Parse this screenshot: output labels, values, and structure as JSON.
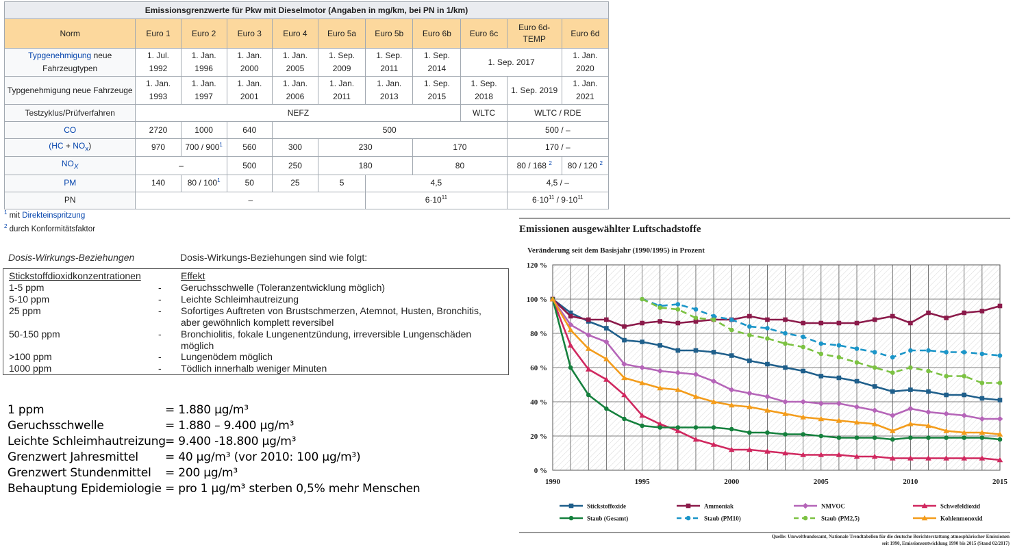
{
  "table": {
    "title": "Emissionsgrenzwerte für Pkw mit Dieselmotor (Angaben in mg/km, bei PN in 1/km)",
    "headers": [
      "Norm",
      "Euro 1",
      "Euro 2",
      "Euro 3",
      "Euro 4",
      "Euro 5a",
      "Euro 5b",
      "Euro 6b",
      "Euro 6c",
      "Euro 6d-TEMP",
      "Euro 6d"
    ],
    "typ_neue_label_link": "Typgenehmigung",
    "typ_neue_label_rest": " neue Fahrzeugtypen",
    "typ_neue_values": [
      "1. Jul. 1992",
      "1. Jan. 1996",
      "1. Jan. 2000",
      "1. Jan. 2005",
      "1. Sep. 2009",
      "1. Sep. 2011",
      "1. Sep. 2014",
      "1. Sep. 2017",
      "1. Jan. 2020"
    ],
    "typ_fz_label": "Typgenehmigung neue Fahrzeuge",
    "typ_fz_values": [
      "1. Jan. 1993",
      "1. Jan. 1997",
      "1. Jan. 2001",
      "1. Jan. 2006",
      "1. Jan. 2011",
      "1. Jan. 2013",
      "1. Sep. 2015",
      "1. Sep. 2018",
      "1. Sep. 2019",
      "1. Jan. 2021"
    ],
    "test_label": "Testzyklus/Prüfverfahren",
    "test_values": [
      "NEFZ",
      "WLTC",
      "WLTC / RDE"
    ],
    "co_label": "CO",
    "co_values": [
      "2720",
      "1000",
      "640",
      "500",
      "500 / –"
    ],
    "hc_label_pre": "(",
    "hc_label_hc": "HC",
    "hc_label_plus": " + ",
    "hc_label_nox": "NO",
    "hc_label_sub": "x",
    "hc_label_post": ")",
    "hc_values": [
      "970",
      "700 / 900",
      "560",
      "300",
      "230",
      "170",
      "170 / –"
    ],
    "hc_sup": "1",
    "nox_label": "NO",
    "nox_sub": "X",
    "nox_values": [
      "–",
      "500",
      "250",
      "180",
      "80",
      "80 / 168 ",
      "80 / 120 "
    ],
    "nox_sup": "2",
    "pm_label": "PM",
    "pm_values": [
      "140",
      "80 / 100",
      "50",
      "25",
      "5",
      "4,5",
      "4,5 / –"
    ],
    "pm_sup": "1",
    "pn_label": "PN",
    "pn_values": [
      "–",
      "6·10",
      "6·10",
      "/ 9·10"
    ],
    "pn_exp": "11"
  },
  "footnotes": {
    "f1_num": "1",
    "f1_text": " mit ",
    "f1_link": "Direkteinspritzung",
    "f2_num": "2",
    "f2_text": " durch Konformitätsfaktor"
  },
  "dose": {
    "heading_italic": "Dosis-Wirkungs-Beziehungen",
    "heading_text": "Dosis-Wirkungs-Beziehungen sind wie folgt:",
    "col1_header": "Stickstoffdioxidkonzentrationen",
    "col3_header": "Effekt",
    "rows": [
      {
        "conc": "1-5 ppm",
        "dash": "-",
        "effect": "Geruchsschwelle (Toleranzentwicklung möglich)"
      },
      {
        "conc": "5-10 ppm",
        "dash": "-",
        "effect": "Leichte Schleimhautreizung"
      },
      {
        "conc": "25 ppm",
        "dash": "-",
        "effect": "Sofortiges Auftreten von Brustschmerzen, Atemnot, Husten, Bronchitis, aber gewöhnlich komplett reversibel"
      },
      {
        "conc": "50-150 ppm",
        "dash": "-",
        "effect": "Bronchiolitis, fokale Lungenentzündung, irreversible Lungenschäden möglich"
      },
      {
        "conc": ">100 ppm",
        "dash": "-",
        "effect": "Lungenödem möglich"
      },
      {
        "conc": "1000 ppm",
        "dash": "-",
        "effect": "Tödlich innerhalb weniger Minuten"
      }
    ]
  },
  "conversions": [
    {
      "label": "1 ppm",
      "value": "= 1.880 µg/m³"
    },
    {
      "label": "Geruchsschwelle",
      "value": "= 1.880 – 9.400 µg/m³"
    },
    {
      "label": "Leichte Schleimhautreizung",
      "value": "= 9.400 -18.800 µg/m³"
    },
    {
      "label": "Grenzwert Jahresmittel",
      "value": "= 40 µg/m³ (vor 2010: 100 µg/m³)"
    },
    {
      "label": "Grenzwert Stundenmittel",
      "value": "= 200 µg/m³"
    },
    {
      "label": "Behauptung Epidemiologie",
      "value": "= pro 1 µg/m³ sterben 0,5% mehr Menschen"
    }
  ],
  "chart_data": {
    "type": "line",
    "title": "Emissionen ausgewählter Luftschadstoffe",
    "subtitle": "Veränderung seit dem Basisjahr (1990/1995) in Prozent",
    "xlabel": "",
    "ylabel": "",
    "xlim": [
      1990,
      2015
    ],
    "ylim": [
      0,
      120
    ],
    "x_ticks": [
      1990,
      1995,
      2000,
      2005,
      2010,
      2015
    ],
    "y_ticks": [
      0,
      20,
      40,
      60,
      80,
      100,
      120
    ],
    "y_tick_labels": [
      "0 %",
      "20 %",
      "40 %",
      "60 %",
      "80 %",
      "100 %",
      "120 %"
    ],
    "grid": true,
    "legend_position": "bottom",
    "source": "Quelle: Umweltbundesamt, Nationale Trendtabellen für die deutsche Berichterstattung atmosphärischer Emissionen seit 1990, Emissionsentwicklung 1990 bis 2015 (Stand 02/2017)",
    "series": [
      {
        "name": "Stickstoffoxide",
        "color": "#1f5f8b",
        "marker": "square",
        "dashed": false,
        "x": [
          1990,
          1991,
          1992,
          1993,
          1994,
          1995,
          1996,
          1997,
          1998,
          1999,
          2000,
          2001,
          2002,
          2003,
          2004,
          2005,
          2006,
          2007,
          2008,
          2009,
          2010,
          2011,
          2012,
          2013,
          2014,
          2015
        ],
        "y": [
          100,
          92,
          87,
          83,
          76,
          75,
          73,
          70,
          70,
          69,
          67,
          64,
          62,
          60,
          58,
          55,
          54,
          52,
          49,
          46,
          47,
          46,
          44,
          44,
          42,
          41
        ]
      },
      {
        "name": "Ammoniak",
        "color": "#8b1a4a",
        "marker": "square",
        "dashed": false,
        "x": [
          1990,
          1991,
          1992,
          1993,
          1994,
          1995,
          1996,
          1997,
          1998,
          1999,
          2000,
          2001,
          2002,
          2003,
          2004,
          2005,
          2006,
          2007,
          2008,
          2009,
          2010,
          2011,
          2012,
          2013,
          2014,
          2015
        ],
        "y": [
          100,
          90,
          88,
          88,
          84,
          86,
          87,
          86,
          87,
          88,
          88,
          90,
          88,
          88,
          86,
          86,
          86,
          86,
          88,
          90,
          86,
          92,
          89,
          92,
          93,
          96
        ]
      },
      {
        "name": "NMVOC",
        "color": "#b565b8",
        "marker": "diamond",
        "dashed": false,
        "x": [
          1990,
          1991,
          1992,
          1993,
          1994,
          1995,
          1996,
          1997,
          1998,
          1999,
          2000,
          2001,
          2002,
          2003,
          2004,
          2005,
          2006,
          2007,
          2008,
          2009,
          2010,
          2011,
          2012,
          2013,
          2014,
          2015
        ],
        "y": [
          100,
          85,
          79,
          75,
          62,
          60,
          58,
          57,
          56,
          52,
          47,
          45,
          43,
          40,
          40,
          39,
          39,
          37,
          35,
          32,
          36,
          34,
          33,
          32,
          30,
          30
        ]
      },
      {
        "name": "Schwefeldioxid",
        "color": "#d0285f",
        "marker": "triangle",
        "dashed": false,
        "x": [
          1990,
          1991,
          1992,
          1993,
          1994,
          1995,
          1996,
          1997,
          1998,
          1999,
          2000,
          2001,
          2002,
          2003,
          2004,
          2005,
          2006,
          2007,
          2008,
          2009,
          2010,
          2011,
          2012,
          2013,
          2014,
          2015
        ],
        "y": [
          100,
          73,
          59,
          53,
          44,
          32,
          27,
          23,
          18,
          15,
          12,
          12,
          11,
          10,
          9,
          9,
          9,
          8,
          8,
          7,
          7,
          7,
          7,
          7,
          7,
          6
        ]
      },
      {
        "name": "Staub (Gesamt)",
        "color": "#15803d",
        "marker": "circle",
        "dashed": false,
        "x": [
          1990,
          1991,
          1992,
          1993,
          1994,
          1995,
          1996,
          1997,
          1998,
          1999,
          2000,
          2001,
          2002,
          2003,
          2004,
          2005,
          2006,
          2007,
          2008,
          2009,
          2010,
          2011,
          2012,
          2013,
          2014,
          2015
        ],
        "y": [
          100,
          60,
          44,
          36,
          30,
          26,
          25,
          25,
          25,
          25,
          24,
          22,
          22,
          21,
          21,
          20,
          19,
          19,
          19,
          18,
          19,
          19,
          19,
          19,
          19,
          18
        ]
      },
      {
        "name": "Staub (PM10)",
        "color": "#1b95c8",
        "marker": "circle",
        "dashed": true,
        "x": [
          1995,
          1996,
          1997,
          1998,
          1999,
          2000,
          2001,
          2002,
          2003,
          2004,
          2005,
          2006,
          2007,
          2008,
          2009,
          2010,
          2011,
          2012,
          2013,
          2014,
          2015
        ],
        "y": [
          100,
          96,
          97,
          94,
          90,
          88,
          84,
          83,
          80,
          78,
          74,
          73,
          71,
          69,
          66,
          70,
          70,
          69,
          69,
          68,
          67
        ]
      },
      {
        "name": "Staub (PM2,5)",
        "color": "#7cc242",
        "marker": "circle",
        "dashed": true,
        "x": [
          1995,
          1996,
          1997,
          1998,
          1999,
          2000,
          2001,
          2002,
          2003,
          2004,
          2005,
          2006,
          2007,
          2008,
          2009,
          2010,
          2011,
          2012,
          2013,
          2014,
          2015
        ],
        "y": [
          100,
          95,
          94,
          89,
          88,
          82,
          79,
          77,
          74,
          72,
          68,
          66,
          63,
          60,
          57,
          60,
          58,
          55,
          55,
          51,
          51
        ]
      },
      {
        "name": "Kohlenmonoxid",
        "color": "#f39c1b",
        "marker": "triangle",
        "dashed": false,
        "x": [
          1990,
          1991,
          1992,
          1993,
          1994,
          1995,
          1996,
          1997,
          1998,
          1999,
          2000,
          2001,
          2002,
          2003,
          2004,
          2005,
          2006,
          2007,
          2008,
          2009,
          2010,
          2011,
          2012,
          2013,
          2014,
          2015
        ],
        "y": [
          100,
          82,
          71,
          65,
          54,
          51,
          48,
          47,
          43,
          40,
          38,
          37,
          35,
          33,
          31,
          30,
          29,
          28,
          27,
          23,
          27,
          26,
          23,
          22,
          22,
          21
        ]
      }
    ]
  }
}
